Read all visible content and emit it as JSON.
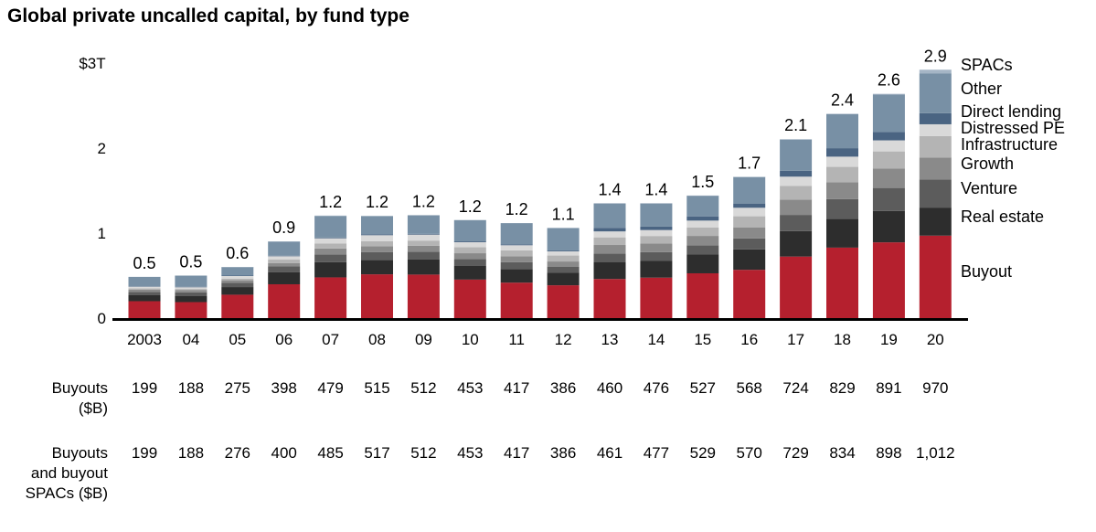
{
  "chart_data": {
    "type": "bar",
    "stacked": true,
    "title": "Global private uncalled capital, by fund type",
    "units": "$T",
    "categories": [
      "2003",
      "04",
      "05",
      "06",
      "07",
      "08",
      "09",
      "10",
      "11",
      "12",
      "13",
      "14",
      "15",
      "16",
      "17",
      "18",
      "19",
      "20"
    ],
    "totals": [
      0.5,
      0.5,
      0.6,
      0.9,
      1.2,
      1.2,
      1.2,
      1.2,
      1.2,
      1.1,
      1.4,
      1.4,
      1.5,
      1.7,
      2.1,
      2.4,
      2.6,
      2.9
    ],
    "total_labels": [
      "0.5",
      "0.5",
      "0.6",
      "0.9",
      "1.2",
      "1.2",
      "1.2",
      "1.2",
      "1.2",
      "1.1",
      "1.4",
      "1.4",
      "1.5",
      "1.7",
      "2.1",
      "2.4",
      "2.6",
      "2.9"
    ],
    "ylim": [
      0,
      3
    ],
    "yticks": [
      {
        "value": 0,
        "label": "0"
      },
      {
        "value": 1,
        "label": "1"
      },
      {
        "value": 2,
        "label": "2"
      },
      {
        "value": 3,
        "label": "$3T"
      }
    ],
    "legend_position": "right",
    "series": [
      {
        "name": "Buyout",
        "color": "#b5202e",
        "values": [
          0.199,
          0.188,
          0.275,
          0.398,
          0.479,
          0.515,
          0.512,
          0.453,
          0.417,
          0.386,
          0.46,
          0.476,
          0.527,
          0.568,
          0.724,
          0.829,
          0.891,
          0.97
        ]
      },
      {
        "name": "Real estate",
        "color": "#2d2d2d",
        "values": [
          0.07,
          0.07,
          0.09,
          0.14,
          0.18,
          0.17,
          0.18,
          0.16,
          0.16,
          0.15,
          0.2,
          0.2,
          0.22,
          0.24,
          0.3,
          0.34,
          0.37,
          0.33
        ]
      },
      {
        "name": "Venture",
        "color": "#5c5c5c",
        "values": [
          0.04,
          0.045,
          0.05,
          0.07,
          0.09,
          0.09,
          0.09,
          0.08,
          0.08,
          0.07,
          0.1,
          0.1,
          0.11,
          0.13,
          0.19,
          0.23,
          0.27,
          0.33
        ]
      },
      {
        "name": "Growth",
        "color": "#8a8a8a",
        "values": [
          0.025,
          0.025,
          0.03,
          0.04,
          0.07,
          0.07,
          0.07,
          0.07,
          0.07,
          0.06,
          0.1,
          0.1,
          0.11,
          0.13,
          0.18,
          0.2,
          0.23,
          0.26
        ]
      },
      {
        "name": "Infrastructure",
        "color": "#b4b4b4",
        "values": [
          0.015,
          0.015,
          0.02,
          0.04,
          0.06,
          0.06,
          0.06,
          0.07,
          0.07,
          0.07,
          0.09,
          0.09,
          0.1,
          0.13,
          0.16,
          0.18,
          0.2,
          0.25
        ]
      },
      {
        "name": "Distressed PE",
        "color": "#d9d9d9",
        "values": [
          0.02,
          0.02,
          0.03,
          0.04,
          0.06,
          0.07,
          0.07,
          0.06,
          0.06,
          0.05,
          0.07,
          0.07,
          0.08,
          0.1,
          0.11,
          0.12,
          0.13,
          0.14
        ]
      },
      {
        "name": "Direct lending",
        "color": "#4a6482",
        "values": [
          0.005,
          0.005,
          0.005,
          0.005,
          0.01,
          0.01,
          0.01,
          0.01,
          0.01,
          0.01,
          0.04,
          0.04,
          0.05,
          0.05,
          0.07,
          0.1,
          0.1,
          0.13
        ]
      },
      {
        "name": "Other",
        "color": "#7890a5",
        "values": [
          0.111,
          0.132,
          0.1,
          0.167,
          0.251,
          0.215,
          0.218,
          0.25,
          0.25,
          0.264,
          0.29,
          0.274,
          0.243,
          0.312,
          0.366,
          0.4,
          0.44,
          0.47
        ]
      },
      {
        "name": "SPACs",
        "color": "#a5b5c5",
        "values": [
          0,
          0,
          0.001,
          0.002,
          0.006,
          0.002,
          0,
          0,
          0,
          0,
          0.001,
          0.001,
          0.002,
          0.002,
          0.005,
          0.005,
          0.007,
          0.042
        ]
      }
    ],
    "table_rows": [
      {
        "label": "Buyouts\n($B)",
        "values": [
          "199",
          "188",
          "275",
          "398",
          "479",
          "515",
          "512",
          "453",
          "417",
          "386",
          "460",
          "476",
          "527",
          "568",
          "724",
          "829",
          "891",
          "970"
        ]
      },
      {
        "label": "Buyouts\nand buyout\nSPACs ($B)",
        "values": [
          "199",
          "188",
          "276",
          "400",
          "485",
          "517",
          "512",
          "453",
          "417",
          "386",
          "461",
          "477",
          "529",
          "570",
          "729",
          "834",
          "898",
          "1,012"
        ]
      }
    ]
  }
}
